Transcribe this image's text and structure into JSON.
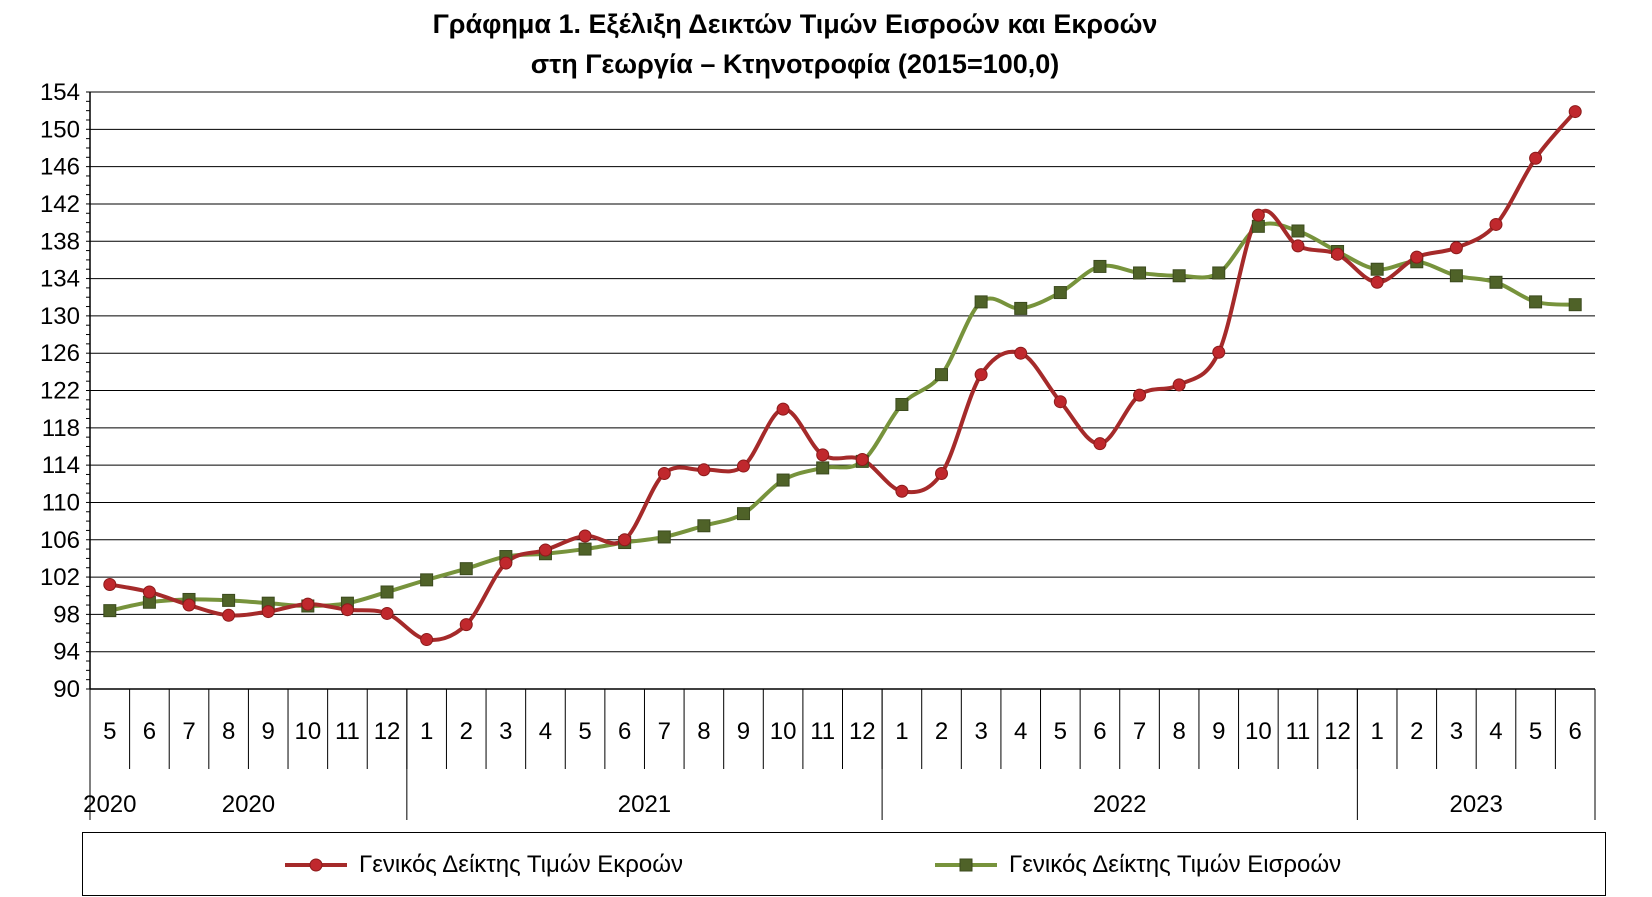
{
  "chart_data": {
    "type": "line",
    "title_line1": "Γράφημα 1. Εξέλιξη Δεικτών Τιμών Εισροών και Εκροών",
    "title_line2": "στη Γεωργία – Κτηνοτροφία (2015=100,0)",
    "ylim": [
      90,
      154
    ],
    "yticks": [
      "154",
      "150",
      "146",
      "142",
      "138",
      "134",
      "130",
      "126",
      "122",
      "118",
      "114",
      "110",
      "106",
      "102",
      "98",
      "94",
      "90"
    ],
    "grid": "horizontal",
    "legend_position": "bottom",
    "x_month_labels": [
      "5",
      "6",
      "7",
      "8",
      "9",
      "10",
      "11",
      "12",
      "1",
      "2",
      "3",
      "4",
      "5",
      "6",
      "7",
      "8",
      "9",
      "10",
      "11",
      "12",
      "1",
      "2",
      "3",
      "4",
      "5",
      "6",
      "7",
      "8",
      "9",
      "10",
      "11",
      "12",
      "1",
      "2",
      "3",
      "4",
      "5",
      "6"
    ],
    "year_groups": [
      {
        "label": "2020",
        "start": 0,
        "end": 0
      },
      {
        "label": "2020",
        "start": 0,
        "end": 7
      },
      {
        "label": "2021",
        "start": 8,
        "end": 19
      },
      {
        "label": "2022",
        "start": 20,
        "end": 31
      },
      {
        "label": "2023",
        "start": 32,
        "end": 37
      }
    ],
    "series": [
      {
        "name": "Γενικός Δείκτης Τιμών Εκροών",
        "color": "#A52A2A",
        "marker": "circle",
        "values": [
          101.2,
          100.4,
          99.0,
          97.9,
          98.3,
          99.1,
          98.5,
          98.1,
          95.3,
          96.9,
          103.5,
          104.9,
          106.4,
          106.0,
          113.1,
          113.5,
          113.9,
          120.0,
          115.1,
          114.6,
          111.2,
          113.1,
          123.7,
          126.0,
          120.8,
          116.3,
          121.5,
          122.6,
          126.1,
          140.8,
          137.5,
          136.6,
          133.6,
          136.3,
          137.3,
          139.8,
          146.9,
          151.9
        ]
      },
      {
        "name": "Γενικός Δείκτης Τιμών Εισροών",
        "color": "#77933C",
        "marker": "square",
        "values": [
          98.4,
          99.3,
          99.6,
          99.5,
          99.2,
          98.9,
          99.2,
          100.4,
          101.7,
          102.9,
          104.2,
          104.5,
          105.0,
          105.7,
          106.3,
          107.5,
          108.8,
          112.4,
          113.7,
          114.4,
          120.5,
          123.7,
          131.5,
          130.8,
          132.5,
          135.3,
          134.6,
          134.3,
          134.6,
          139.6,
          139.1,
          136.9,
          135.0,
          135.8,
          134.3,
          133.6,
          131.5,
          131.2
        ]
      }
    ]
  }
}
